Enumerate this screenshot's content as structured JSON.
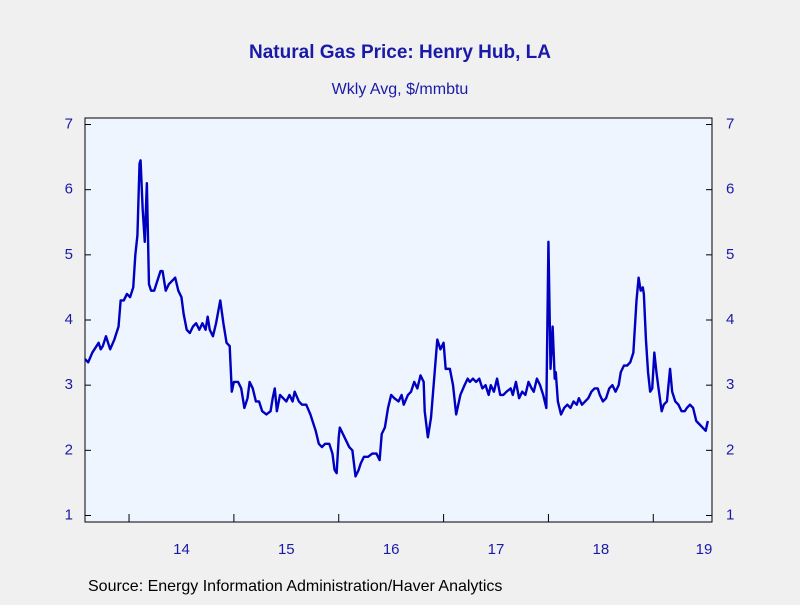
{
  "chart_data": {
    "type": "line",
    "title": "Natural Gas Price: Henry Hub, LA",
    "subtitle": "Wkly Avg, $/mmbtu",
    "source": "Source:  Energy Information Administration/Haver Analytics",
    "xlim": [
      2013.58,
      2019.56
    ],
    "xticks": [
      {
        "value": 2014,
        "label": "14"
      },
      {
        "value": 2015,
        "label": "15"
      },
      {
        "value": 2016,
        "label": "16"
      },
      {
        "value": 2017,
        "label": "17"
      },
      {
        "value": 2018,
        "label": "18"
      },
      {
        "value": 2019,
        "label": "19"
      }
    ],
    "ylim": [
      0.9,
      7.1
    ],
    "yticks": [
      1,
      2,
      3,
      4,
      5,
      6,
      7
    ],
    "series": [
      {
        "color": "#0000c0",
        "x": [
          2013.58,
          2013.61,
          2013.65,
          2013.69,
          2013.71,
          2013.73,
          2013.75,
          2013.78,
          2013.82,
          2013.86,
          2013.9,
          2013.92,
          2013.95,
          2013.98,
          2014.01,
          2014.04,
          2014.06,
          2014.08,
          2014.1,
          2014.11,
          2014.13,
          2014.15,
          2014.17,
          2014.19,
          2014.21,
          2014.24,
          2014.27,
          2014.3,
          2014.32,
          2014.35,
          2014.38,
          2014.41,
          2014.44,
          2014.47,
          2014.5,
          2014.52,
          2014.55,
          2014.58,
          2014.61,
          2014.64,
          2014.67,
          2014.7,
          2014.73,
          2014.75,
          2014.77,
          2014.8,
          2014.83,
          2014.87,
          2014.9,
          2014.93,
          2014.96,
          2014.98,
          2015.0,
          2015.04,
          2015.07,
          2015.1,
          2015.13,
          2015.15,
          2015.18,
          2015.21,
          2015.24,
          2015.27,
          2015.31,
          2015.35,
          2015.37,
          2015.39,
          2015.41,
          2015.44,
          2015.47,
          2015.5,
          2015.53,
          2015.56,
          2015.58,
          2015.62,
          2015.65,
          2015.69,
          2015.73,
          2015.76,
          2015.78,
          2015.81,
          2015.84,
          2015.87,
          2015.91,
          2015.94,
          2015.96,
          2015.98,
          2016.0,
          2016.01,
          2016.04,
          2016.07,
          2016.1,
          2016.13,
          2016.16,
          2016.19,
          2016.21,
          2016.24,
          2016.28,
          2016.32,
          2016.36,
          2016.39,
          2016.41,
          2016.44,
          2016.47,
          2016.5,
          2016.53,
          2016.57,
          2016.6,
          2016.62,
          2016.66,
          2016.69,
          2016.72,
          2016.75,
          2016.78,
          2016.81,
          2016.82,
          2016.85,
          2016.88,
          2016.91,
          2016.94,
          2016.97,
          2017.0,
          2017.02,
          2017.06,
          2017.09,
          2017.12,
          2017.16,
          2017.2,
          2017.23,
          2017.25,
          2017.28,
          2017.31,
          2017.34,
          2017.37,
          2017.4,
          2017.43,
          2017.45,
          2017.48,
          2017.51,
          2017.54,
          2017.57,
          2017.6,
          2017.64,
          2017.66,
          2017.69,
          2017.72,
          2017.75,
          2017.78,
          2017.81,
          2017.84,
          2017.86,
          2017.89,
          2017.92,
          2017.95,
          2017.98,
          2018.0,
          2018.02,
          2018.04,
          2018.06,
          2018.07,
          2018.09,
          2018.12,
          2018.15,
          2018.18,
          2018.21,
          2018.24,
          2018.27,
          2018.29,
          2018.32,
          2018.35,
          2018.38,
          2018.41,
          2018.44,
          2018.47,
          2018.49,
          2018.52,
          2018.55,
          2018.58,
          2018.61,
          2018.64,
          2018.67,
          2018.69,
          2018.72,
          2018.75,
          2018.78,
          2018.81,
          2018.84,
          2018.86,
          2018.88,
          2018.9,
          2018.91,
          2018.93,
          2018.95,
          2018.97,
          2018.99,
          2019.01,
          2019.03,
          2019.05,
          2019.08,
          2019.1,
          2019.13,
          2019.16,
          2019.18,
          2019.21,
          2019.24,
          2019.27,
          2019.3,
          2019.32,
          2019.35,
          2019.38,
          2019.41,
          2019.44,
          2019.47,
          2019.5,
          2019.52
        ],
        "values": [
          3.4,
          3.35,
          3.5,
          3.6,
          3.65,
          3.55,
          3.6,
          3.75,
          3.55,
          3.7,
          3.9,
          4.3,
          4.3,
          4.4,
          4.35,
          4.5,
          5.0,
          5.3,
          6.4,
          6.45,
          5.7,
          5.2,
          6.1,
          4.55,
          4.45,
          4.45,
          4.6,
          4.75,
          4.75,
          4.45,
          4.55,
          4.6,
          4.65,
          4.45,
          4.35,
          4.1,
          3.85,
          3.8,
          3.9,
          3.95,
          3.85,
          3.95,
          3.85,
          4.05,
          3.85,
          3.75,
          3.95,
          4.3,
          3.95,
          3.65,
          3.6,
          2.9,
          3.05,
          3.05,
          2.95,
          2.65,
          2.8,
          3.05,
          2.95,
          2.75,
          2.75,
          2.6,
          2.55,
          2.6,
          2.8,
          2.95,
          2.6,
          2.85,
          2.8,
          2.75,
          2.85,
          2.75,
          2.9,
          2.75,
          2.7,
          2.7,
          2.55,
          2.4,
          2.3,
          2.1,
          2.05,
          2.1,
          2.1,
          1.95,
          1.7,
          1.65,
          2.2,
          2.35,
          2.25,
          2.15,
          2.05,
          2.0,
          1.6,
          1.7,
          1.8,
          1.9,
          1.9,
          1.95,
          1.95,
          1.85,
          2.25,
          2.35,
          2.65,
          2.85,
          2.8,
          2.75,
          2.85,
          2.7,
          2.85,
          2.9,
          3.05,
          2.95,
          3.15,
          3.05,
          2.6,
          2.2,
          2.5,
          3.1,
          3.7,
          3.55,
          3.65,
          3.25,
          3.25,
          3.0,
          2.55,
          2.85,
          3.0,
          3.1,
          3.05,
          3.1,
          3.05,
          3.1,
          2.95,
          3.0,
          2.85,
          3.0,
          2.9,
          3.1,
          2.85,
          2.85,
          2.9,
          2.95,
          2.85,
          3.05,
          2.8,
          2.9,
          2.85,
          3.05,
          2.95,
          2.9,
          3.1,
          3.0,
          2.85,
          2.65,
          5.2,
          3.25,
          3.9,
          3.1,
          3.2,
          2.75,
          2.55,
          2.65,
          2.7,
          2.65,
          2.75,
          2.7,
          2.8,
          2.7,
          2.75,
          2.8,
          2.9,
          2.95,
          2.95,
          2.85,
          2.75,
          2.8,
          2.95,
          3.0,
          2.9,
          3.0,
          3.2,
          3.3,
          3.3,
          3.35,
          3.5,
          4.3,
          4.65,
          4.45,
          4.5,
          4.4,
          3.7,
          3.2,
          2.9,
          2.95,
          3.5,
          3.2,
          2.95,
          2.6,
          2.7,
          2.75,
          3.25,
          2.9,
          2.75,
          2.7,
          2.6,
          2.6,
          2.65,
          2.7,
          2.65,
          2.45,
          2.4,
          2.35,
          2.3,
          2.45
        ]
      }
    ]
  }
}
